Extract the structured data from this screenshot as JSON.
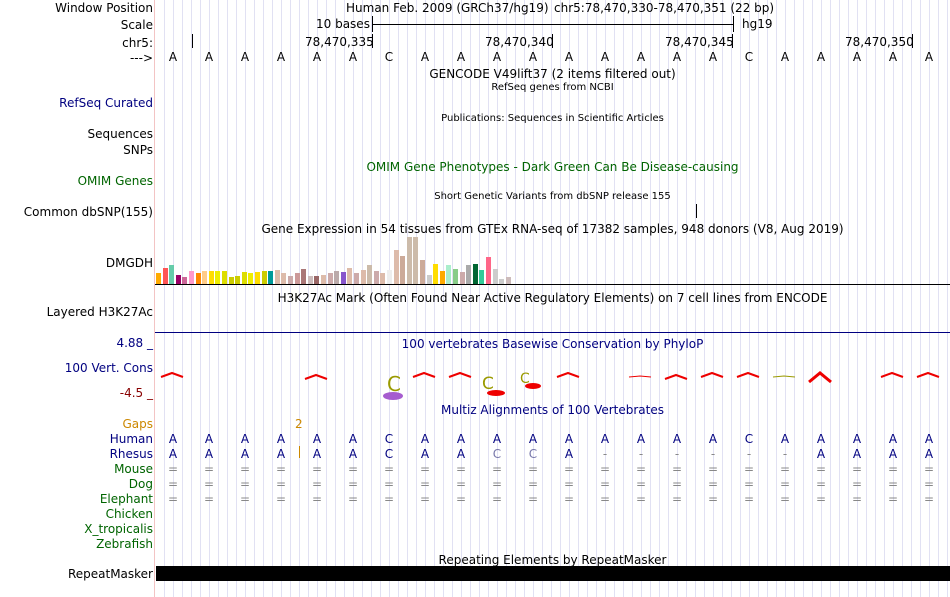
{
  "position": {
    "label": "Window Position",
    "assembly": "Human Feb. 2009 (GRCh37/hg19)",
    "coords": "chr5:78,470,330-78,470,351 (22 bp)"
  },
  "scale": {
    "label": "Scale",
    "text": "10 bases",
    "build": "hg19"
  },
  "ruler": {
    "label": "chr5:",
    "ticks": [
      "78,470,335",
      "78,470,340",
      "78,470,345",
      "78,470,350"
    ]
  },
  "dna": {
    "label": "--->",
    "bases": [
      "A",
      "A",
      "A",
      "A",
      "A",
      "A",
      "C",
      "A",
      "A",
      "A",
      "A",
      "A",
      "A",
      "A",
      "A",
      "A",
      "C",
      "A",
      "A",
      "A",
      "A",
      "A"
    ]
  },
  "gencode": {
    "title": "GENCODE V49lift37 (2 items filtered out)"
  },
  "refseq": {
    "label": "RefSeq Curated",
    "title": "RefSeq genes from NCBI"
  },
  "publications": {
    "title": "Publications: Sequences in Scientific Articles"
  },
  "sequences": {
    "label": "Sequences"
  },
  "snps": {
    "label": "SNPs"
  },
  "omim": {
    "label": "OMIM Genes",
    "title": "OMIM Gene Phenotypes - Dark Green Can Be Disease-causing"
  },
  "dbsnp": {
    "label": "Common dbSNP(155)",
    "title": "Short Genetic Variants from dbSNP release 155"
  },
  "gtex": {
    "title": "Gene Expression in 54 tissues from GTEx RNA-seq of 17382 samples, 948 donors (V8, Aug 2019)",
    "gene": "DMGDH",
    "values": [
      9,
      14,
      16,
      8,
      6,
      11,
      9,
      11,
      11,
      11,
      11,
      6,
      7,
      10,
      9,
      10,
      11,
      11,
      12,
      9,
      7,
      9,
      13,
      7,
      7,
      8,
      9,
      11,
      10,
      14,
      9,
      12,
      16,
      11,
      9,
      12,
      29,
      24,
      40,
      40,
      20,
      8,
      17,
      11,
      16,
      13,
      10,
      16,
      17,
      12,
      23,
      13,
      4,
      6
    ],
    "colors": [
      "#ffaa00",
      "#ff5555",
      "#66ccaa",
      "#990066",
      "#cc6699",
      "#ff99cc",
      "#ff8800",
      "#ffcc88",
      "#ffdd00",
      "#eeee00",
      "#dddd00",
      "#cccc00",
      "#cccc00",
      "#dddd00",
      "#eeee00",
      "#ffdd00",
      "#cccc00",
      "#009999",
      "#ddbbaa",
      "#ddbbaa",
      "#ccaaaa",
      "#cc9999",
      "#aa7777",
      "#ccbbbb",
      "#996666",
      "#ddbbaa",
      "#ccaaaa",
      "#bbaaaa",
      "#8855cc",
      "#ddbbaa",
      "#ccaaaa",
      "#ddbbaa",
      "#ccbbaa",
      "#ccaaaa",
      "#ddbbaa",
      "#eeeeee",
      "#ddbbaa",
      "#ccaa99",
      "#ccbbaa",
      "#ccbbaa",
      "#ccaa99",
      "#cccccc",
      "#ffdd00",
      "#ffaa00",
      "#aaeecc",
      "#88cc88",
      "#ccaaaa",
      "#aaaaaa",
      "#006633",
      "#33cc99",
      "#ff6688",
      "#cccccc",
      "#cccccc",
      "#ccbbbb"
    ]
  },
  "h3k27ac": {
    "label": "Layered H3K27Ac",
    "title": "H3K27Ac Mark (Often Found Near Active Regulatory Elements) on 7 cell lines from ENCODE"
  },
  "conservation": {
    "label": "100 Vert. Cons",
    "max": "4.88 _",
    "min": "-4.5 _",
    "title": "100 vertebrates Basewise Conservation by PhyloP"
  },
  "multiz": {
    "title": "Multiz Alignments of 100 Vertebrates",
    "gaps_label": "Gaps",
    "gap_count": "2",
    "species": [
      {
        "name": "Human",
        "bases": [
          "A",
          "A",
          "A",
          "A",
          "A",
          "A",
          "C",
          "A",
          "A",
          "A",
          "A",
          "A",
          "A",
          "A",
          "A",
          "A",
          "C",
          "A",
          "A",
          "A",
          "A",
          "A"
        ]
      },
      {
        "name": "Rhesus",
        "bases": [
          "A",
          "A",
          "A",
          "A",
          "A",
          "A",
          "C",
          "A",
          "A",
          "C",
          "C",
          "A",
          "-",
          "-",
          "-",
          "-",
          "-",
          "-",
          "A",
          "A",
          "A",
          "A"
        ]
      },
      {
        "name": "Mouse",
        "bases": [
          "=",
          "=",
          "=",
          "=",
          "=",
          "=",
          "=",
          "=",
          "=",
          "=",
          "=",
          "=",
          "=",
          "=",
          "=",
          "=",
          "=",
          "=",
          "=",
          "=",
          "=",
          "="
        ]
      },
      {
        "name": "Dog",
        "bases": [
          "=",
          "=",
          "=",
          "=",
          "=",
          "=",
          "=",
          "=",
          "=",
          "=",
          "=",
          "=",
          "=",
          "=",
          "=",
          "=",
          "=",
          "=",
          "=",
          "=",
          "=",
          "="
        ]
      },
      {
        "name": "Elephant",
        "bases": [
          "=",
          "=",
          "=",
          "=",
          "=",
          "=",
          "=",
          "=",
          "=",
          "=",
          "=",
          "=",
          "=",
          "=",
          "=",
          "=",
          "=",
          "=",
          "=",
          "=",
          "=",
          "="
        ]
      },
      {
        "name": "Chicken",
        "bases": []
      },
      {
        "name": "X_tropicalis",
        "bases": []
      },
      {
        "name": "Zebrafish",
        "bases": []
      }
    ]
  },
  "repeatmasker": {
    "label": "RepeatMasker",
    "title": "Repeating Elements by RepeatMasker"
  },
  "colors": {
    "navy": "#000080",
    "green": "#006400",
    "gaps": "#cc8800",
    "rhesus_mismatch": "#7777aa",
    "rhesus": "#000080",
    "chromosome_marker": "#cc3300"
  }
}
